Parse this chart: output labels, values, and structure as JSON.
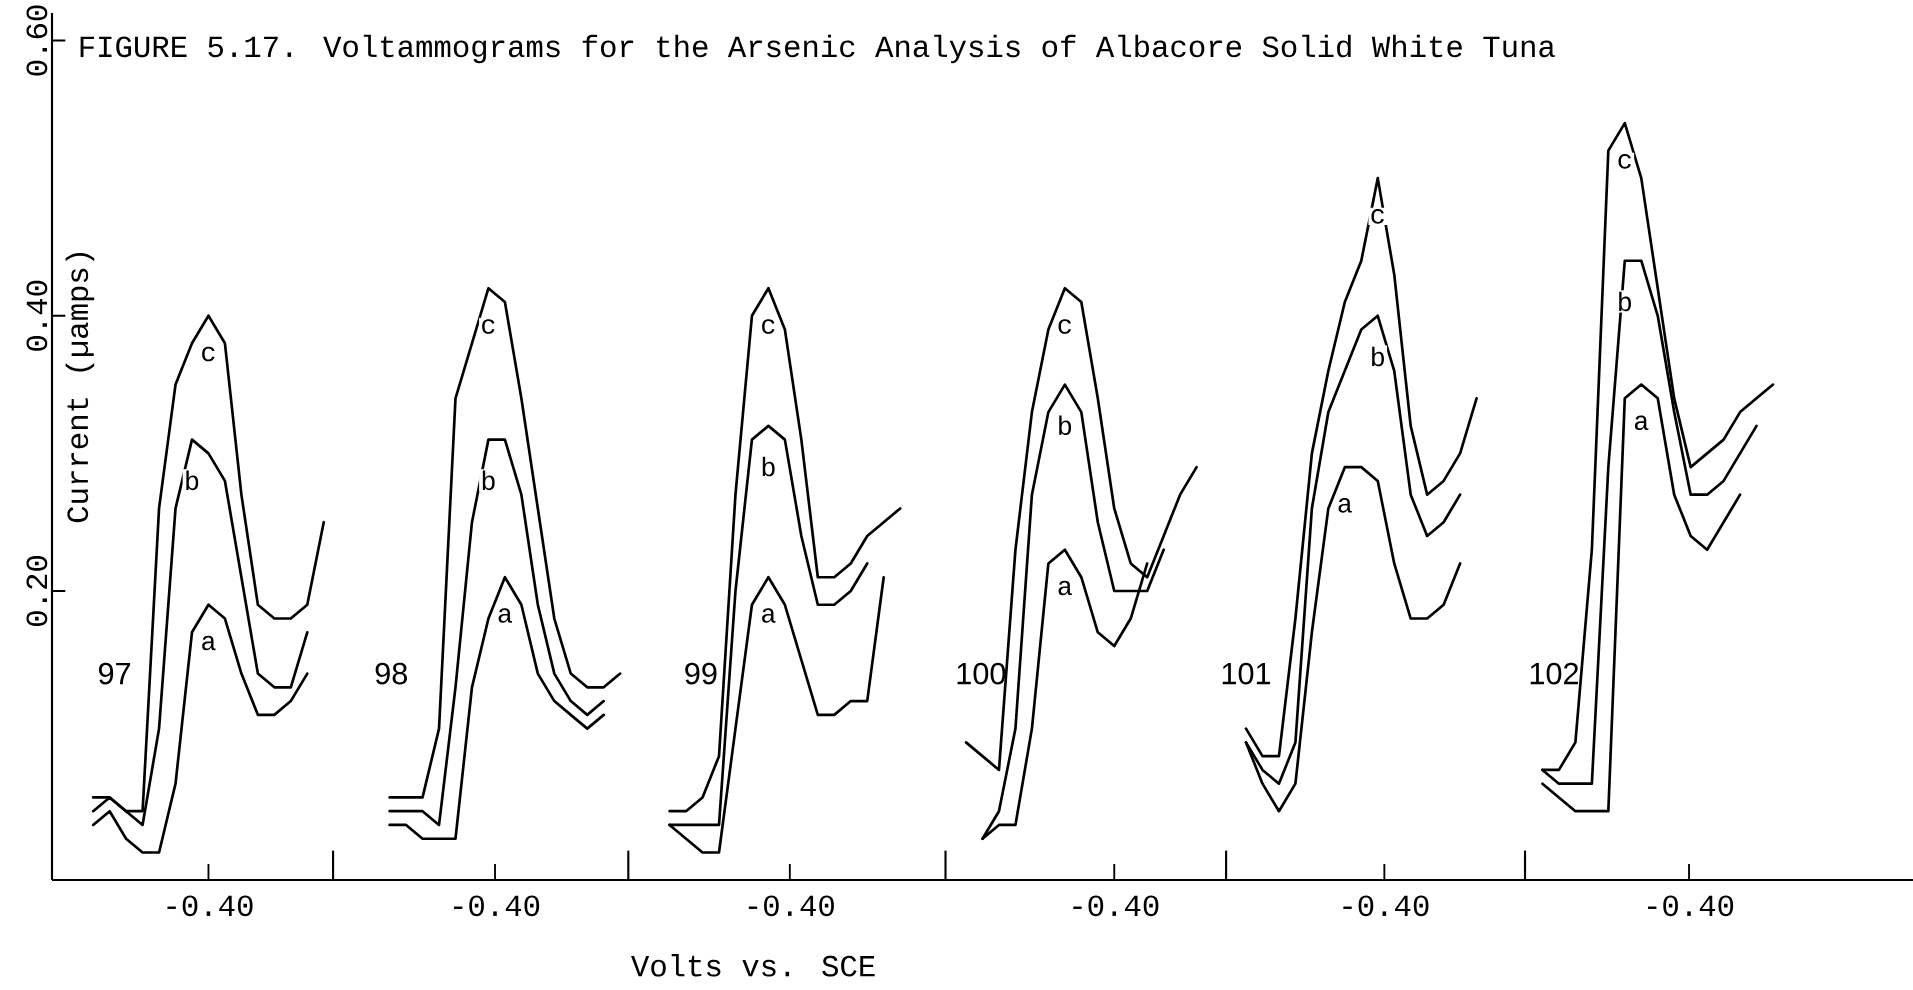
{
  "chart_data": {
    "type": "line",
    "title": "FIGURE 5.17.  Voltammograms for the Arsenic Analysis of Albacore Solid White Tuna",
    "xlabel": "Volts vs. SCE",
    "ylabel": "Current (µamps)",
    "annotations": [
      "97",
      "98",
      "99",
      "100",
      "101",
      "102",
      "-0.40",
      "-0.40",
      "-0.40",
      "-0.40",
      "-0.40",
      "-0.40"
    ],
    "ylim": [
      -0.01,
      0.62
    ],
    "yticks": [
      {
        "value": 0.2,
        "label": "0.20"
      },
      {
        "value": 0.4,
        "label": "0.40"
      },
      {
        "value": 0.6,
        "label": "0.60"
      }
    ],
    "categories": [
      null,
      null,
      null,
      null,
      null,
      null,
      null,
      null,
      null,
      null,
      null,
      null,
      null,
      null,
      null,
      null,
      null,
      null,
      null,
      null,
      null,
      null,
      null,
      null,
      null,
      null,
      null,
      null,
      null,
      null,
      null,
      null,
      null,
      null,
      null,
      null,
      null,
      null,
      null,
      null,
      null,
      null,
      null,
      null,
      null,
      null,
      null,
      null,
      null,
      null,
      null,
      null,
      null,
      null,
      null,
      null,
      null,
      null,
      null,
      null,
      null,
      null,
      null,
      null,
      null,
      null,
      null,
      null,
      null,
      null,
      null,
      null,
      null,
      null,
      null,
      null,
      null,
      null,
      null,
      null,
      null,
      null,
      null,
      null,
      null,
      null,
      null,
      null,
      null,
      null,
      null,
      null,
      null,
      null,
      null,
      null,
      null,
      null,
      null,
      null,
      null,
      null,
      null,
      null,
      null,
      null,
      null,
      null,
      null,
      null,
      null,
      null,
      null
    ],
    "series": [
      {
        "name": "a",
        "color": "#000000",
        "values": [
          null,
          null,
          0.03,
          0.04,
          0.02,
          0.01,
          0.01,
          0.06,
          0.17,
          0.19,
          0.18,
          0.14,
          0.11,
          0.11,
          0.12,
          0.14,
          null,
          null,
          null,
          null,
          0.03,
          0.03,
          0.02,
          0.02,
          0.02,
          0.13,
          0.18,
          0.21,
          0.19,
          0.14,
          0.12,
          0.11,
          0.1,
          0.11,
          null,
          null,
          null,
          0.03,
          0.02,
          0.01,
          0.01,
          0.1,
          0.19,
          0.21,
          0.19,
          0.15,
          0.11,
          0.11,
          0.12,
          0.12,
          0.21,
          null,
          null,
          null,
          null,
          null,
          0.02,
          0.03,
          0.03,
          0.1,
          0.22,
          0.23,
          0.21,
          0.17,
          0.16,
          0.18,
          0.22,
          null,
          null,
          null,
          null,
          null,
          0.09,
          0.06,
          0.04,
          0.06,
          0.17,
          0.26,
          0.29,
          0.29,
          0.28,
          0.22,
          0.18,
          0.18,
          0.19,
          0.22,
          null,
          null,
          null,
          null,
          0.06,
          0.05,
          0.04,
          0.04,
          0.04,
          0.34,
          0.35,
          0.34,
          0.27,
          0.24,
          0.23,
          0.25,
          0.27,
          null,
          null,
          null,
          null,
          null,
          null,
          null,
          null,
          null,
          null
        ]
      },
      {
        "name": "b",
        "color": "#000000",
        "values": [
          null,
          null,
          0.04,
          0.05,
          0.04,
          0.03,
          0.1,
          0.26,
          0.31,
          0.3,
          0.28,
          0.21,
          0.14,
          0.13,
          0.13,
          0.17,
          null,
          null,
          null,
          null,
          0.04,
          0.04,
          0.04,
          0.03,
          0.13,
          0.25,
          0.31,
          0.31,
          0.27,
          0.19,
          0.14,
          0.12,
          0.11,
          0.12,
          null,
          null,
          null,
          0.03,
          0.03,
          0.03,
          0.03,
          0.2,
          0.31,
          0.32,
          0.31,
          0.24,
          0.19,
          0.19,
          0.2,
          0.22,
          null,
          null,
          null,
          null,
          null,
          null,
          0.02,
          0.04,
          0.1,
          0.27,
          0.33,
          0.35,
          0.33,
          0.25,
          0.2,
          0.2,
          0.2,
          0.23,
          null,
          null,
          null,
          null,
          0.09,
          0.07,
          0.06,
          0.09,
          0.26,
          0.33,
          0.36,
          0.39,
          0.4,
          0.36,
          0.27,
          0.24,
          0.25,
          0.27,
          null,
          null,
          null,
          null,
          0.07,
          0.06,
          0.06,
          0.06,
          0.29,
          0.44,
          0.44,
          0.4,
          0.33,
          0.27,
          0.27,
          0.28,
          0.3,
          0.32,
          null,
          null,
          null,
          null,
          null,
          null,
          null,
          null,
          null
        ]
      },
      {
        "name": "c",
        "color": "#000000",
        "values": [
          null,
          null,
          0.05,
          0.05,
          0.04,
          0.04,
          0.26,
          0.35,
          0.38,
          0.4,
          0.38,
          0.27,
          0.19,
          0.18,
          0.18,
          0.19,
          0.25,
          null,
          null,
          null,
          0.05,
          0.05,
          0.05,
          0.1,
          0.34,
          0.38,
          0.42,
          0.41,
          0.34,
          0.26,
          0.18,
          0.14,
          0.13,
          0.13,
          0.14,
          null,
          null,
          0.04,
          0.04,
          0.05,
          0.08,
          0.27,
          0.4,
          0.42,
          0.39,
          0.31,
          0.21,
          0.21,
          0.22,
          0.24,
          0.25,
          0.26,
          null,
          null,
          null,
          0.09,
          0.08,
          0.07,
          0.23,
          0.33,
          0.39,
          0.42,
          0.41,
          0.34,
          0.26,
          0.22,
          0.21,
          0.24,
          0.27,
          0.29,
          null,
          null,
          0.1,
          0.08,
          0.08,
          0.18,
          0.3,
          0.36,
          0.41,
          0.44,
          0.5,
          0.43,
          0.32,
          0.27,
          0.28,
          0.3,
          0.34,
          null,
          null,
          null,
          0.07,
          0.07,
          0.09,
          0.23,
          0.52,
          0.54,
          0.5,
          0.42,
          0.34,
          0.29,
          0.3,
          0.31,
          0.33,
          0.34,
          0.35,
          null,
          null,
          null,
          null,
          null,
          null,
          null,
          null
        ]
      }
    ]
  }
}
